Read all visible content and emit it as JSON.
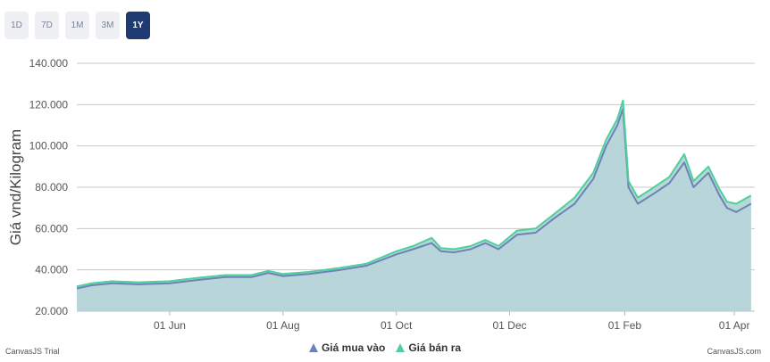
{
  "range_buttons": [
    {
      "label": "1D",
      "active": false
    },
    {
      "label": "7D",
      "active": false
    },
    {
      "label": "1M",
      "active": false
    },
    {
      "label": "3M",
      "active": false
    },
    {
      "label": "1Y",
      "active": true
    }
  ],
  "chart_data": {
    "type": "area",
    "ylabel": "Giá vnd/Kilogram",
    "ylim": [
      20000,
      140000
    ],
    "y_ticks": [
      "20.000",
      "40.000",
      "60.000",
      "80.000",
      "100.000",
      "120.000",
      "140.000"
    ],
    "xlim": [
      "2024-04-12",
      "2025-04-12"
    ],
    "x_ticks": [
      {
        "date": "2024-06-01",
        "label": "01 Jun"
      },
      {
        "date": "2024-08-01",
        "label": "01 Aug"
      },
      {
        "date": "2024-10-01",
        "label": "01 Oct"
      },
      {
        "date": "2024-12-01",
        "label": "01 Dec"
      },
      {
        "date": "2025-02-01",
        "label": "01 Feb"
      },
      {
        "date": "2025-04-01",
        "label": "01 Apr"
      }
    ],
    "grid": true,
    "legend_position": "bottom",
    "series": [
      {
        "name": "Giá mua vào",
        "color": "#6d82b8",
        "points": [
          [
            "2024-04-12",
            31000
          ],
          [
            "2024-04-20",
            32500
          ],
          [
            "2024-05-01",
            33500
          ],
          [
            "2024-05-15",
            33000
          ],
          [
            "2024-06-01",
            33500
          ],
          [
            "2024-06-15",
            35000
          ],
          [
            "2024-07-01",
            36500
          ],
          [
            "2024-07-15",
            36500
          ],
          [
            "2024-07-24",
            38500
          ],
          [
            "2024-08-01",
            37000
          ],
          [
            "2024-08-15",
            38000
          ],
          [
            "2024-09-01",
            40000
          ],
          [
            "2024-09-15",
            42000
          ],
          [
            "2024-10-01",
            47500
          ],
          [
            "2024-10-10",
            50000
          ],
          [
            "2024-10-20",
            53000
          ],
          [
            "2024-10-25",
            49000
          ],
          [
            "2024-11-01",
            48500
          ],
          [
            "2024-11-10",
            50000
          ],
          [
            "2024-11-18",
            53000
          ],
          [
            "2024-11-25",
            50000
          ],
          [
            "2024-12-05",
            57000
          ],
          [
            "2024-12-15",
            58000
          ],
          [
            "2024-12-25",
            65000
          ],
          [
            "2025-01-05",
            72000
          ],
          [
            "2025-01-15",
            84000
          ],
          [
            "2025-01-22",
            100000
          ],
          [
            "2025-01-28",
            110000
          ],
          [
            "2025-01-31",
            118000
          ],
          [
            "2025-02-03",
            80000
          ],
          [
            "2025-02-08",
            72000
          ],
          [
            "2025-02-15",
            76000
          ],
          [
            "2025-02-25",
            82000
          ],
          [
            "2025-03-05",
            92000
          ],
          [
            "2025-03-10",
            80000
          ],
          [
            "2025-03-18",
            87000
          ],
          [
            "2025-03-24",
            76000
          ],
          [
            "2025-03-28",
            70000
          ],
          [
            "2025-04-02",
            68000
          ],
          [
            "2025-04-10",
            72000
          ]
        ]
      },
      {
        "name": "Giá bán ra",
        "color": "#4fcf9c",
        "points": [
          [
            "2024-04-12",
            32000
          ],
          [
            "2024-04-20",
            33500
          ],
          [
            "2024-05-01",
            34500
          ],
          [
            "2024-05-15",
            34000
          ],
          [
            "2024-06-01",
            34500
          ],
          [
            "2024-06-15",
            36000
          ],
          [
            "2024-07-01",
            37500
          ],
          [
            "2024-07-15",
            37500
          ],
          [
            "2024-07-24",
            39500
          ],
          [
            "2024-08-01",
            38000
          ],
          [
            "2024-08-15",
            39000
          ],
          [
            "2024-09-01",
            41000
          ],
          [
            "2024-09-15",
            43000
          ],
          [
            "2024-10-01",
            49000
          ],
          [
            "2024-10-10",
            51500
          ],
          [
            "2024-10-20",
            55500
          ],
          [
            "2024-10-25",
            50500
          ],
          [
            "2024-11-01",
            50000
          ],
          [
            "2024-11-10",
            51500
          ],
          [
            "2024-11-18",
            54500
          ],
          [
            "2024-11-25",
            51500
          ],
          [
            "2024-12-05",
            59000
          ],
          [
            "2024-12-15",
            60000
          ],
          [
            "2024-12-25",
            67000
          ],
          [
            "2025-01-05",
            75000
          ],
          [
            "2025-01-15",
            87000
          ],
          [
            "2025-01-22",
            103000
          ],
          [
            "2025-01-28",
            113000
          ],
          [
            "2025-01-31",
            122000
          ],
          [
            "2025-02-03",
            83000
          ],
          [
            "2025-02-08",
            75000
          ],
          [
            "2025-02-15",
            79000
          ],
          [
            "2025-02-25",
            85000
          ],
          [
            "2025-03-05",
            96000
          ],
          [
            "2025-03-10",
            83000
          ],
          [
            "2025-03-18",
            90000
          ],
          [
            "2025-03-24",
            79000
          ],
          [
            "2025-03-28",
            73000
          ],
          [
            "2025-04-02",
            72000
          ],
          [
            "2025-04-10",
            76000
          ]
        ]
      }
    ]
  },
  "legend": [
    "Giá mua vào",
    "Giá bán ra"
  ],
  "watermark_left": "CanvasJS Trial",
  "watermark_right": "CanvasJS.com"
}
